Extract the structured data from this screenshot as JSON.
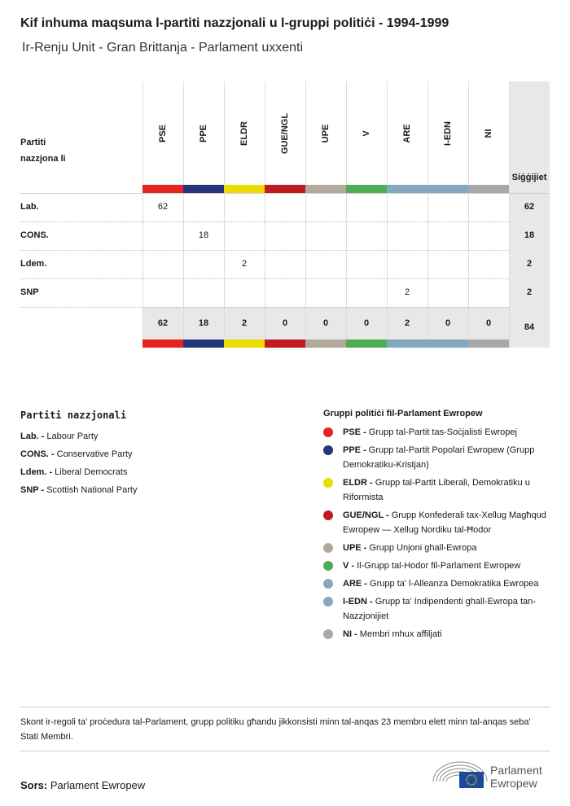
{
  "title": "Kif inhuma maqsuma l-partiti nazzjonali u l-gruppi politiċi - 1994-1999",
  "subtitle": "Ir-Renju Unit - Gran Brittanja - Parlament uxxenti",
  "table": {
    "row_header": "Partiti nazzjona li",
    "total_header": "Siġġijiet",
    "groups": [
      {
        "code": "PSE",
        "color": "#e52421"
      },
      {
        "code": "PPE",
        "color": "#27357a"
      },
      {
        "code": "ELDR",
        "color": "#ecdc00"
      },
      {
        "code": "GUE/NGL",
        "color": "#c01c20"
      },
      {
        "code": "UPE",
        "color": "#b2a99d"
      },
      {
        "code": "V",
        "color": "#4fac53"
      },
      {
        "code": "ARE",
        "color": "#84a9bf"
      },
      {
        "code": "I-EDN",
        "color": "#84a9bf"
      },
      {
        "code": "NI",
        "color": "#a8a8a8"
      }
    ],
    "rows": [
      {
        "party": "Lab.",
        "values": [
          "62",
          "",
          "",
          "",
          "",
          "",
          "",
          "",
          ""
        ],
        "total": "62"
      },
      {
        "party": "CONS.",
        "values": [
          "",
          "18",
          "",
          "",
          "",
          "",
          "",
          "",
          ""
        ],
        "total": "18"
      },
      {
        "party": "Ldem.",
        "values": [
          "",
          "",
          "2",
          "",
          "",
          "",
          "",
          "",
          ""
        ],
        "total": "2"
      },
      {
        "party": "SNP",
        "values": [
          "",
          "",
          "",
          "",
          "",
          "",
          "2",
          "",
          ""
        ],
        "total": "2"
      }
    ],
    "totals": [
      "62",
      "18",
      "2",
      "0",
      "0",
      "0",
      "2",
      "0",
      "0"
    ],
    "grand_total": "84"
  },
  "legend_parties": {
    "title": "Partiti nazzjonali",
    "items": [
      {
        "abbr": "Lab. -",
        "name": " Labour Party"
      },
      {
        "abbr": "CONS. -",
        "name": " Conservative Party"
      },
      {
        "abbr": "Ldem. -",
        "name": " Liberal Democrats"
      },
      {
        "abbr": "SNP -",
        "name": " Scottish National Party"
      }
    ]
  },
  "legend_groups": {
    "title": "Gruppi politiċi fil-Parlament Ewropew",
    "items": [
      {
        "abbr": "PSE -",
        "name": " Grupp tal-Partit tas-Soċjalisti Ewropej"
      },
      {
        "abbr": "PPE -",
        "name": " Grupp tal-Partit Popolari Ewropew (Grupp Demokratiku-Kristjan)"
      },
      {
        "abbr": "ELDR -",
        "name": " Grupp tal-Partit Liberali, Demokratiku u Riformista"
      },
      {
        "abbr": "GUE/NGL -",
        "name": " Grupp Konfederali tax-Xellug Magħqud Ewropew — Xellug Nordiku tal-Ħodor"
      },
      {
        "abbr": "UPE -",
        "name": " Grupp Unjoni ghall-Ewropa"
      },
      {
        "abbr": "V -",
        "name": " Il-Grupp tal-Hodor fil-Parlament Ewropew"
      },
      {
        "abbr": "ARE -",
        "name": " Grupp ta' l-Alleanza Demokratika Ewropea"
      },
      {
        "abbr": "I-EDN -",
        "name": " Grupp ta' Indipendenti ghall-Ewropa tan-Nazzjonijiet"
      },
      {
        "abbr": "NI -",
        "name": " Membri mhux affiljati"
      }
    ]
  },
  "note": "Skont ir-regoli ta' proċedura tal-Parlament, grupp politiku għandu jikkonsisti minn tal-anqas 23 membru elett minn tal-anqas seba' Stati Membri.",
  "source_label": "Sors:",
  "source": " Parlament Ewropew",
  "logo_text": [
    "Parlament",
    "Ewropew"
  ]
}
